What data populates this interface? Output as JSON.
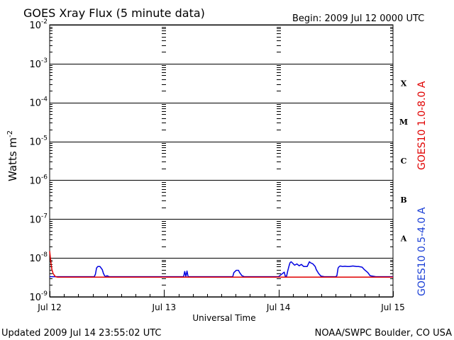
{
  "chart_data": {
    "type": "line",
    "title": "GOES Xray Flux (5 minute data)",
    "begin_label": "Begin:  2009 Jul 12 0000 UTC",
    "ylabel": "Watts m",
    "ylabel_sup": "-2",
    "xlabel": "Universal Time",
    "x_ticks": [
      "Jul 12",
      "Jul 13",
      "Jul 14",
      "Jul 15"
    ],
    "x_range_days": [
      0,
      3
    ],
    "y_scale": "log",
    "y_exponents": [
      -2,
      -3,
      -4,
      -5,
      -6,
      -7,
      -8,
      -9
    ],
    "y_tick_base": "10",
    "ylim": [
      1e-09,
      0.01
    ],
    "flare_classes": [
      {
        "label": "X",
        "value": 0.0001
      },
      {
        "label": "M",
        "value": 1e-05
      },
      {
        "label": "C",
        "value": 1e-06
      },
      {
        "label": "B",
        "value": 1e-07
      },
      {
        "label": "A",
        "value": 1e-08
      }
    ],
    "grid": true,
    "series": [
      {
        "name": "GOES10 1.0-8.0 A",
        "color": "#e00000",
        "x_days": [
          0.0,
          0.01,
          0.02,
          0.03,
          0.04,
          0.05,
          0.07,
          0.1,
          3.0
        ],
        "y": [
          1.5e-08,
          8e-09,
          5e-09,
          4e-09,
          3.6e-09,
          3.3e-09,
          3.2e-09,
          3.2e-09,
          3.2e-09
        ]
      },
      {
        "name": "GOES10 0.5-4.0 A",
        "color": "#0000e0",
        "x_days": [
          0.0,
          0.39,
          0.4,
          0.41,
          0.42,
          0.44,
          0.46,
          0.47,
          0.48,
          0.49,
          0.5,
          0.52,
          0.55,
          0.6,
          0.7,
          0.9,
          1.0,
          1.17,
          1.18,
          1.19,
          1.2,
          1.21,
          1.22,
          1.23,
          1.25,
          1.3,
          1.6,
          1.61,
          1.62,
          1.63,
          1.65,
          1.66,
          1.68,
          1.7,
          1.75,
          1.9,
          2.0,
          2.05,
          2.06,
          2.07,
          2.08,
          2.09,
          2.1,
          2.11,
          2.12,
          2.14,
          2.16,
          2.18,
          2.2,
          2.22,
          2.25,
          2.27,
          2.28,
          2.3,
          2.32,
          2.33,
          2.35,
          2.37,
          2.4,
          2.5,
          2.5,
          2.51,
          2.52,
          2.53,
          2.54,
          2.56,
          2.58,
          2.6,
          2.62,
          2.65,
          2.68,
          2.7,
          2.73,
          2.75,
          2.78,
          2.8,
          2.85,
          2.9,
          2.95,
          3.0
        ],
        "y": [
          3.3e-09,
          3.3e-09,
          3.8e-09,
          5.5e-09,
          6e-09,
          6e-09,
          5e-09,
          4e-09,
          3.5e-09,
          3.3e-09,
          3.5e-09,
          3.3e-09,
          3.3e-09,
          3.3e-09,
          3.3e-09,
          3.3e-09,
          3.3e-09,
          3.3e-09,
          4.5e-09,
          3.3e-09,
          4.6e-09,
          3.3e-09,
          3.3e-09,
          3.3e-09,
          3.3e-09,
          3.3e-09,
          3.3e-09,
          4.2e-09,
          4.5e-09,
          4.8e-09,
          4.8e-09,
          4.2e-09,
          3.5e-09,
          3.3e-09,
          3.3e-09,
          3.3e-09,
          3.3e-09,
          4.3e-09,
          3.3e-09,
          3.4e-09,
          4.6e-09,
          6e-09,
          7.5e-09,
          8e-09,
          7.5e-09,
          6.5e-09,
          7e-09,
          6.3e-09,
          6.8e-09,
          6e-09,
          6e-09,
          8e-09,
          7.5e-09,
          7e-09,
          6e-09,
          5e-09,
          4e-09,
          3.4e-09,
          3.3e-09,
          3.3e-09,
          3.3e-09,
          3.5e-09,
          5.5e-09,
          6e-09,
          6.2e-09,
          6e-09,
          6.1e-09,
          6e-09,
          6e-09,
          6.2e-09,
          6e-09,
          6e-09,
          5.8e-09,
          5e-09,
          4.2e-09,
          3.5e-09,
          3.3e-09,
          3.3e-09,
          3.3e-09,
          3.3e-09
        ]
      }
    ]
  },
  "footer": {
    "updated": "Updated 2009 Jul 14 23:55:02 UTC",
    "source": "NOAA/SWPC Boulder, CO USA"
  }
}
